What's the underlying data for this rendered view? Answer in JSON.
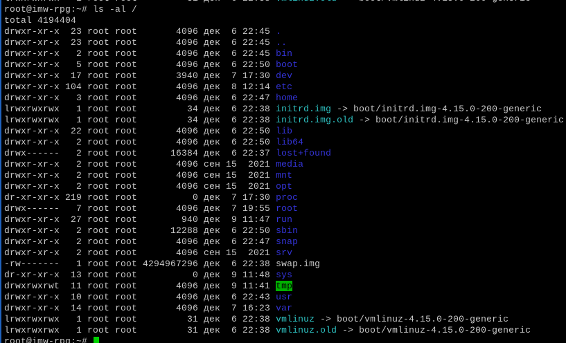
{
  "terminal": {
    "colors": {
      "background": "#000000",
      "foreground": "#c8c8c8",
      "directory_blue": "#3434d8",
      "symlink_cyan": "#2ec2c2",
      "sticky_bg_green": "#00b000",
      "sticky_text_black": "#000000",
      "cursor_green": "#00d200",
      "window_edge_blue": "#1f62be"
    },
    "prompt": "root@imw-rpg:~#",
    "command": "ls -al /",
    "total_line": "total 4194404",
    "scrollback_tail": {
      "perms": "lrwxrwxrwx",
      "links": "1",
      "owner": "root",
      "group": "root",
      "size": "31",
      "month": "дек",
      "day": "6",
      "time": "22:38",
      "name": "vmlinuz.old",
      "type": "link",
      "target": "boot/vmlinuz-4.15.0-200-generic"
    },
    "entries": [
      {
        "perms": "drwxr-xr-x",
        "links": "23",
        "owner": "root",
        "group": "root",
        "size": "4096",
        "month": "дек",
        "day": "6",
        "time": "22:45",
        "name": ".",
        "type": "dir"
      },
      {
        "perms": "drwxr-xr-x",
        "links": "23",
        "owner": "root",
        "group": "root",
        "size": "4096",
        "month": "дек",
        "day": "6",
        "time": "22:45",
        "name": "..",
        "type": "dir"
      },
      {
        "perms": "drwxr-xr-x",
        "links": "2",
        "owner": "root",
        "group": "root",
        "size": "4096",
        "month": "дек",
        "day": "6",
        "time": "22:45",
        "name": "bin",
        "type": "dir"
      },
      {
        "perms": "drwxr-xr-x",
        "links": "5",
        "owner": "root",
        "group": "root",
        "size": "4096",
        "month": "дек",
        "day": "6",
        "time": "22:50",
        "name": "boot",
        "type": "dir"
      },
      {
        "perms": "drwxr-xr-x",
        "links": "17",
        "owner": "root",
        "group": "root",
        "size": "3940",
        "month": "дек",
        "day": "7",
        "time": "17:30",
        "name": "dev",
        "type": "dir"
      },
      {
        "perms": "drwxr-xr-x",
        "links": "104",
        "owner": "root",
        "group": "root",
        "size": "4096",
        "month": "дек",
        "day": "8",
        "time": "12:14",
        "name": "etc",
        "type": "dir"
      },
      {
        "perms": "drwxr-xr-x",
        "links": "3",
        "owner": "root",
        "group": "root",
        "size": "4096",
        "month": "дек",
        "day": "6",
        "time": "22:47",
        "name": "home",
        "type": "dir"
      },
      {
        "perms": "lrwxrwxrwx",
        "links": "1",
        "owner": "root",
        "group": "root",
        "size": "34",
        "month": "дек",
        "day": "6",
        "time": "22:38",
        "name": "initrd.img",
        "type": "link",
        "target": "boot/initrd.img-4.15.0-200-generic"
      },
      {
        "perms": "lrwxrwxrwx",
        "links": "1",
        "owner": "root",
        "group": "root",
        "size": "34",
        "month": "дек",
        "day": "6",
        "time": "22:38",
        "name": "initrd.img.old",
        "type": "link",
        "target": "boot/initrd.img-4.15.0-200-generic"
      },
      {
        "perms": "drwxr-xr-x",
        "links": "22",
        "owner": "root",
        "group": "root",
        "size": "4096",
        "month": "дек",
        "day": "6",
        "time": "22:50",
        "name": "lib",
        "type": "dir"
      },
      {
        "perms": "drwxr-xr-x",
        "links": "2",
        "owner": "root",
        "group": "root",
        "size": "4096",
        "month": "дек",
        "day": "6",
        "time": "22:50",
        "name": "lib64",
        "type": "dir"
      },
      {
        "perms": "drwx------",
        "links": "2",
        "owner": "root",
        "group": "root",
        "size": "16384",
        "month": "дек",
        "day": "6",
        "time": "22:37",
        "name": "lost+found",
        "type": "dir"
      },
      {
        "perms": "drwxr-xr-x",
        "links": "2",
        "owner": "root",
        "group": "root",
        "size": "4096",
        "month": "сен",
        "day": "15",
        "time": "2021",
        "name": "media",
        "type": "dir"
      },
      {
        "perms": "drwxr-xr-x",
        "links": "2",
        "owner": "root",
        "group": "root",
        "size": "4096",
        "month": "сен",
        "day": "15",
        "time": "2021",
        "name": "mnt",
        "type": "dir"
      },
      {
        "perms": "drwxr-xr-x",
        "links": "2",
        "owner": "root",
        "group": "root",
        "size": "4096",
        "month": "сен",
        "day": "15",
        "time": "2021",
        "name": "opt",
        "type": "dir"
      },
      {
        "perms": "dr-xr-xr-x",
        "links": "219",
        "owner": "root",
        "group": "root",
        "size": "0",
        "month": "дек",
        "day": "7",
        "time": "17:30",
        "name": "proc",
        "type": "dir"
      },
      {
        "perms": "drwx------",
        "links": "7",
        "owner": "root",
        "group": "root",
        "size": "4096",
        "month": "дек",
        "day": "7",
        "time": "19:55",
        "name": "root",
        "type": "dir"
      },
      {
        "perms": "drwxr-xr-x",
        "links": "27",
        "owner": "root",
        "group": "root",
        "size": "940",
        "month": "дек",
        "day": "9",
        "time": "11:47",
        "name": "run",
        "type": "dir"
      },
      {
        "perms": "drwxr-xr-x",
        "links": "2",
        "owner": "root",
        "group": "root",
        "size": "12288",
        "month": "дек",
        "day": "6",
        "time": "22:50",
        "name": "sbin",
        "type": "dir"
      },
      {
        "perms": "drwxr-xr-x",
        "links": "2",
        "owner": "root",
        "group": "root",
        "size": "4096",
        "month": "дек",
        "day": "6",
        "time": "22:47",
        "name": "snap",
        "type": "dir"
      },
      {
        "perms": "drwxr-xr-x",
        "links": "2",
        "owner": "root",
        "group": "root",
        "size": "4096",
        "month": "сен",
        "day": "15",
        "time": "2021",
        "name": "srv",
        "type": "dir"
      },
      {
        "perms": "-rw-------",
        "links": "1",
        "owner": "root",
        "group": "root",
        "size": "4294967296",
        "month": "дек",
        "day": "6",
        "time": "22:38",
        "name": "swap.img",
        "type": "file"
      },
      {
        "perms": "dr-xr-xr-x",
        "links": "13",
        "owner": "root",
        "group": "root",
        "size": "0",
        "month": "дек",
        "day": "9",
        "time": "11:48",
        "name": "sys",
        "type": "dir"
      },
      {
        "perms": "drwxrwxrwt",
        "links": "11",
        "owner": "root",
        "group": "root",
        "size": "4096",
        "month": "дек",
        "day": "9",
        "time": "11:41",
        "name": "tmp",
        "type": "sticky"
      },
      {
        "perms": "drwxr-xr-x",
        "links": "10",
        "owner": "root",
        "group": "root",
        "size": "4096",
        "month": "дек",
        "day": "6",
        "time": "22:43",
        "name": "usr",
        "type": "dir"
      },
      {
        "perms": "drwxr-xr-x",
        "links": "14",
        "owner": "root",
        "group": "root",
        "size": "4096",
        "month": "дек",
        "day": "7",
        "time": "16:23",
        "name": "var",
        "type": "dir"
      },
      {
        "perms": "lrwxrwxrwx",
        "links": "1",
        "owner": "root",
        "group": "root",
        "size": "31",
        "month": "дек",
        "day": "6",
        "time": "22:38",
        "name": "vmlinuz",
        "type": "link",
        "target": "boot/vmlinuz-4.15.0-200-generic"
      },
      {
        "perms": "lrwxrwxrwx",
        "links": "1",
        "owner": "root",
        "group": "root",
        "size": "31",
        "month": "дек",
        "day": "6",
        "time": "22:38",
        "name": "vmlinuz.old",
        "type": "link",
        "target": "boot/vmlinuz-4.15.0-200-generic"
      }
    ],
    "bottom_prompt": "root@imw-rpg:~#"
  }
}
